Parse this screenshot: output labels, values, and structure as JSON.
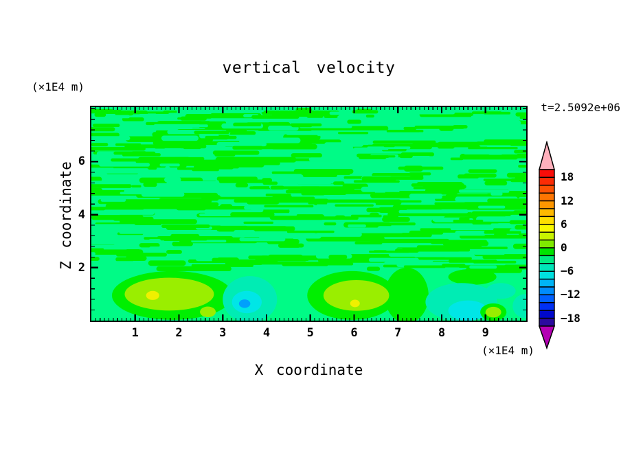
{
  "page": {
    "background": "#ffffff"
  },
  "chart_data": {
    "type": "contour",
    "title": "vertical velocity",
    "xlabel": "X coordinate",
    "ylabel": "Z coordinate",
    "x_unit_label": "(×1E4 m)",
    "y_unit_label": "(×1E4 m)",
    "time_annotation": "t=2.5092e+06",
    "xlim": [
      0,
      9.93
    ],
    "ylim": [
      0,
      8.06
    ],
    "grid": false,
    "x_major_ticks": [
      1,
      2,
      3,
      4,
      5,
      6,
      7,
      8,
      9
    ],
    "x_tick_labels": [
      "1",
      "2",
      "3",
      "4",
      "5",
      "6",
      "7",
      "8",
      "9"
    ],
    "x_minor_step": 0.1,
    "y_major_ticks": [
      2,
      4,
      6
    ],
    "y_tick_labels": [
      "6",
      "4",
      "2"
    ],
    "y_tick_values": [
      6,
      4,
      2
    ],
    "y_minor_step": 0.4,
    "colorbar": {
      "min": -20,
      "max": 20,
      "step": 2,
      "labeled_levels": [
        18,
        12,
        6,
        0,
        -6,
        -12,
        -18
      ],
      "labels": [
        "18",
        "12",
        "6",
        "0",
        "−6",
        "−12",
        "−18"
      ],
      "segment_colors_top_to_bottom": [
        "#f90d09",
        "#fb2c05",
        "#fd5203",
        "#fe7501",
        "#fe9600",
        "#feb900",
        "#fede00",
        "#f8f800",
        "#c8f300",
        "#7fe900",
        "#00e400",
        "#00eb80",
        "#00e6b8",
        "#00e0e0",
        "#00b4f6",
        "#008cfc",
        "#0060ff",
        "#0030f4",
        "#0008cc",
        "#2a0a9e"
      ],
      "over_arrow_color": "#ffb0bc",
      "under_arrow_color": "#b400b4",
      "outline_color": "#000000"
    },
    "palette": {
      "green": "#00ef00",
      "spring_green": "#00fb86",
      "chartreuse": "#9aee00",
      "yellow": "#f0f000",
      "turquoise": "#00ecb4",
      "cyan": "#00e6e6",
      "light_blue": "#00a0fc"
    },
    "level_values_by_color": {
      "spring_green": [
        -2,
        0
      ],
      "green": [
        0,
        2
      ],
      "chartreuse": [
        2,
        4
      ],
      "yellow": [
        4,
        6
      ],
      "turquoise": [
        -4,
        -2
      ],
      "cyan": [
        -6,
        -4
      ],
      "light_blue": [
        -10,
        -8
      ]
    },
    "field": {
      "background": {
        "color_key": "spring_green",
        "value_range": [
          -2,
          0
        ]
      },
      "streaks": {
        "value_range": [
          0,
          2
        ],
        "z_top": 8.06,
        "z_bottom": 1.95,
        "seed": 20,
        "passes": [
          {
            "color_key": "green",
            "count": 240,
            "len": [
              18,
              130
            ],
            "h": [
              3.5,
              8.5
            ]
          },
          {
            "color_key": "spring_green",
            "count": 150,
            "len": [
              14,
              95
            ],
            "h": [
              3.5,
              8
            ]
          },
          {
            "color_key": "green",
            "count": 150,
            "len": [
              12,
              75
            ],
            "h": [
              3,
              7
            ]
          }
        ]
      },
      "features": [
        {
          "name": "updraft-blob-left",
          "x": 1.85,
          "z": 0.95,
          "rx": 1.38,
          "rz": 0.92,
          "color_key": "green"
        },
        {
          "name": "updraft-core-left",
          "x": 1.78,
          "z": 1.0,
          "rx": 1.02,
          "rz": 0.62,
          "color_key": "chartreuse"
        },
        {
          "name": "updraft-max-left",
          "x": 1.4,
          "z": 0.95,
          "rx": 0.15,
          "rz": 0.17,
          "color_key": "yellow"
        },
        {
          "name": "small-core-left",
          "x": 2.66,
          "z": 0.33,
          "rx": 0.18,
          "rz": 0.2,
          "color_key": "chartreuse"
        },
        {
          "name": "downdraft-mid",
          "x": 3.62,
          "z": 0.8,
          "rx": 0.62,
          "rz": 0.88,
          "color_key": "turquoise"
        },
        {
          "name": "downdraft-core-mid",
          "x": 3.55,
          "z": 0.7,
          "rx": 0.34,
          "rz": 0.42,
          "color_key": "cyan"
        },
        {
          "name": "downdraft-min-mid",
          "x": 3.5,
          "z": 0.64,
          "rx": 0.13,
          "rz": 0.16,
          "color_key": "light_blue"
        },
        {
          "name": "updraft-swath-right-center",
          "x": 7.2,
          "z": 0.95,
          "rx": 0.5,
          "rz": 1.05,
          "color_key": "green"
        },
        {
          "name": "updraft-patch-upper-right",
          "x": 8.7,
          "z": 1.65,
          "rx": 0.55,
          "rz": 0.3,
          "color_key": "green"
        },
        {
          "name": "updraft-blob-center",
          "x": 5.95,
          "z": 0.95,
          "rx": 1.02,
          "rz": 0.92,
          "color_key": "green"
        },
        {
          "name": "updraft-core-center",
          "x": 6.05,
          "z": 0.95,
          "rx": 0.75,
          "rz": 0.58,
          "color_key": "chartreuse"
        },
        {
          "name": "updraft-max-center",
          "x": 6.02,
          "z": 0.65,
          "rx": 0.11,
          "rz": 0.14,
          "color_key": "yellow"
        },
        {
          "name": "downdraft-right",
          "x": 8.45,
          "z": 0.7,
          "rx": 0.82,
          "rz": 0.72,
          "color_key": "turquoise"
        },
        {
          "name": "downdraft-core-right",
          "x": 8.6,
          "z": 0.38,
          "rx": 0.45,
          "rz": 0.38,
          "color_key": "cyan"
        },
        {
          "name": "downdraft-upper-right",
          "x": 9.35,
          "z": 1.12,
          "rx": 0.34,
          "rz": 0.3,
          "color_key": "turquoise"
        },
        {
          "name": "updraft-ring-right",
          "x": 9.18,
          "z": 0.32,
          "rx": 0.3,
          "rz": 0.33,
          "color_key": "green"
        },
        {
          "name": "updraft-core-right",
          "x": 9.18,
          "z": 0.32,
          "rx": 0.18,
          "rz": 0.2,
          "color_key": "chartreuse"
        },
        {
          "name": "downdraft-edge-right",
          "x": 9.9,
          "z": 0.55,
          "rx": 0.28,
          "rz": 0.45,
          "color_key": "turquoise"
        }
      ]
    }
  }
}
